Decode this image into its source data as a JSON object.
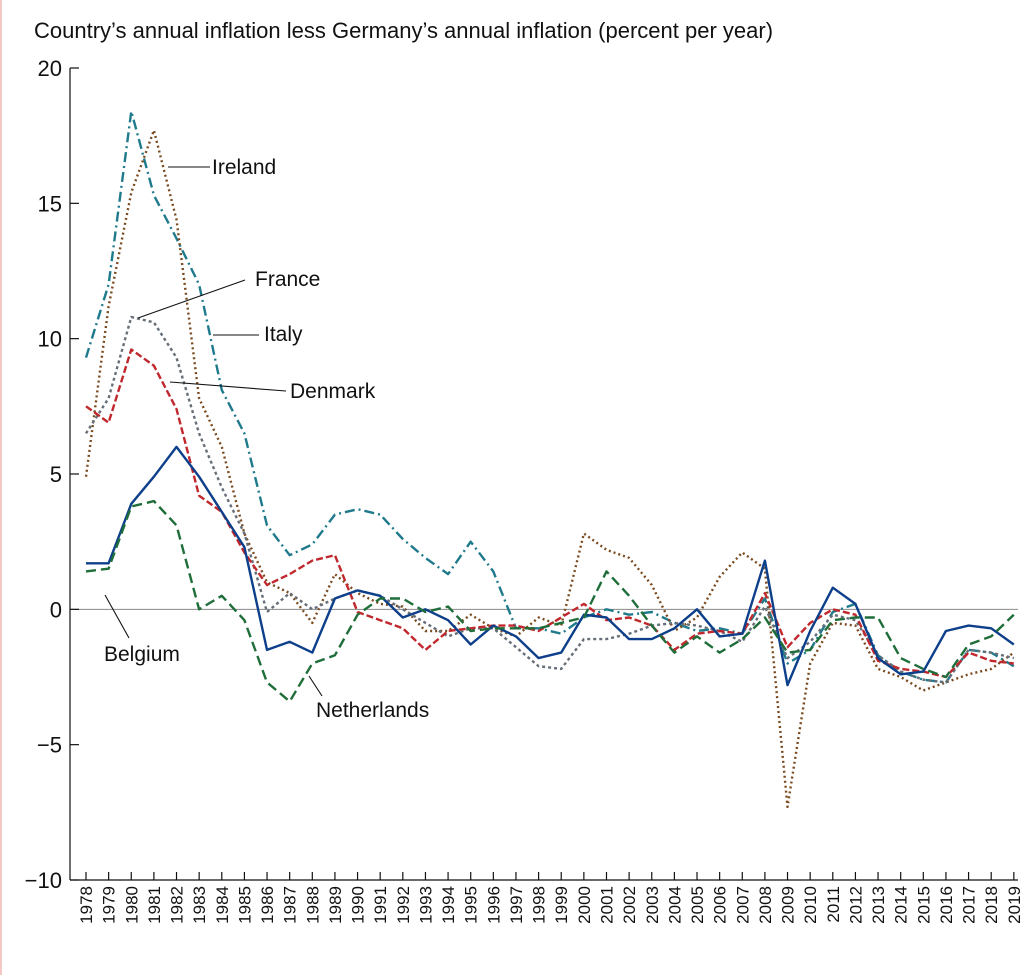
{
  "chart_data": {
    "type": "line",
    "title": "Country’s annual inflation less Germany’s annual inflation (percent per year)",
    "xlabel": "",
    "ylabel": "",
    "ylim": [
      -10,
      20
    ],
    "yticks": [
      "20",
      "15",
      "10",
      "5",
      "0",
      "−5",
      "−10"
    ],
    "ytick_values": [
      20,
      15,
      10,
      5,
      0,
      -5,
      -10
    ],
    "categories": [
      "1978",
      "1979",
      "1980",
      "1981",
      "1982",
      "1983",
      "1984",
      "1985",
      "1986",
      "1987",
      "1988",
      "1989",
      "1990",
      "1991",
      "1992",
      "1993",
      "1994",
      "1995",
      "1996",
      "1997",
      "1998",
      "1999",
      "2000",
      "2001",
      "2002",
      "2003",
      "2004",
      "2005",
      "2006",
      "2007",
      "2008",
      "2009",
      "2010",
      "2011",
      "2012",
      "2013",
      "2014",
      "2015",
      "2016",
      "2017",
      "2018",
      "2019"
    ],
    "grid": false,
    "zero_line": true,
    "series": [
      {
        "name": "Italy",
        "color": "#1f7a8c",
        "dash": "10 4 2 4",
        "values": [
          9.3,
          12.0,
          18.4,
          15.3,
          13.7,
          12.0,
          8.1,
          6.5,
          3.1,
          2.0,
          2.4,
          3.5,
          3.7,
          3.5,
          2.6,
          1.9,
          1.3,
          2.5,
          1.4,
          -0.7,
          -0.7,
          -0.9,
          -0.3,
          0.0,
          -0.2,
          -0.1,
          -0.5,
          -0.8,
          -0.7,
          -0.9,
          0.4,
          -2.0,
          -1.5,
          -0.1,
          0.2,
          -1.7,
          -2.3,
          -2.6,
          -2.7,
          -1.5,
          -1.6,
          -2.1
        ]
      },
      {
        "name": "Ireland",
        "color": "#7a4a1e",
        "dash": "2 3",
        "values": [
          4.9,
          11.2,
          15.4,
          17.7,
          14.4,
          7.8,
          6.0,
          2.8,
          1.0,
          0.6,
          -0.5,
          1.3,
          0.6,
          0.2,
          0.1,
          -0.8,
          -0.8,
          -0.2,
          -0.7,
          -1.0,
          -0.3,
          -0.6,
          2.8,
          2.2,
          1.9,
          0.9,
          -0.8,
          -0.3,
          1.2,
          2.1,
          1.5,
          -7.3,
          -2.0,
          -0.5,
          -0.6,
          -2.2,
          -2.5,
          -3.0,
          -2.7,
          -2.4,
          -2.2,
          -1.6
        ]
      },
      {
        "name": "France",
        "color": "#666e77",
        "dash": "3 3",
        "values": [
          6.5,
          7.8,
          10.8,
          10.6,
          9.3,
          6.5,
          4.5,
          2.8,
          -0.1,
          0.6,
          0.0,
          0.4,
          0.7,
          0.5,
          0.0,
          -0.5,
          -1.0,
          -0.7,
          -0.7,
          -1.4,
          -2.1,
          -2.2,
          -1.1,
          -1.1,
          -0.9,
          -0.6,
          -0.5,
          -0.6,
          -0.8,
          -1.2,
          0.1,
          -1.8,
          -1.2,
          -0.2,
          -0.4,
          -1.7,
          -2.3,
          -2.6,
          -2.7,
          -1.5,
          -1.6,
          -1.8
        ]
      },
      {
        "name": "Denmark",
        "color": "#c0282d",
        "dash": "7 3",
        "values": [
          7.5,
          6.9,
          9.6,
          9.0,
          7.4,
          4.2,
          3.6,
          2.1,
          0.9,
          1.3,
          1.8,
          2.0,
          -0.1,
          -0.4,
          -0.7,
          -1.5,
          -0.8,
          -0.7,
          -0.6,
          -0.6,
          -0.8,
          -0.3,
          0.2,
          -0.4,
          -0.3,
          -0.6,
          -1.5,
          -0.9,
          -0.8,
          -0.9,
          0.6,
          -1.4,
          -0.5,
          0.0,
          -0.2,
          -1.9,
          -2.2,
          -2.3,
          -2.5,
          -1.6,
          -1.9,
          -2.0
        ]
      },
      {
        "name": "Belgium",
        "color": "#0d3f8a",
        "dash": "",
        "values": [
          1.7,
          1.7,
          3.9,
          4.9,
          6.0,
          4.9,
          3.6,
          2.3,
          -1.5,
          -1.2,
          -1.6,
          0.4,
          0.7,
          0.5,
          -0.3,
          0.0,
          -0.4,
          -1.3,
          -0.6,
          -1.0,
          -1.8,
          -1.6,
          -0.2,
          -0.3,
          -1.1,
          -1.1,
          -0.7,
          0.0,
          -1.0,
          -0.9,
          1.8,
          -2.8,
          -0.8,
          0.8,
          0.2,
          -1.8,
          -2.4,
          -2.3,
          -0.8,
          -0.6,
          -0.7,
          -1.3
        ]
      },
      {
        "name": "Netherlands",
        "color": "#1f6e3a",
        "dash": "10 5",
        "values": [
          1.4,
          1.5,
          3.8,
          4.0,
          3.1,
          0.0,
          0.5,
          -0.4,
          -2.7,
          -3.4,
          -2.0,
          -1.7,
          -0.2,
          0.4,
          0.4,
          -0.1,
          0.1,
          -0.8,
          -0.7,
          -0.7,
          -0.7,
          -0.5,
          -0.3,
          1.4,
          0.5,
          -0.6,
          -1.6,
          -1.0,
          -1.6,
          -1.1,
          -0.3,
          -1.6,
          -1.5,
          -0.4,
          -0.3,
          -0.3,
          -1.8,
          -2.2,
          -2.5,
          -1.3,
          -1.0,
          -0.2
        ]
      }
    ],
    "annotations": [
      {
        "text": "Ireland",
        "series": "Ireland"
      },
      {
        "text": "France",
        "series": "France"
      },
      {
        "text": "Italy",
        "series": "Italy"
      },
      {
        "text": "Denmark",
        "series": "Denmark"
      },
      {
        "text": "Belgium",
        "series": "Belgium"
      },
      {
        "text": "Netherlands",
        "series": "Netherlands"
      }
    ]
  }
}
